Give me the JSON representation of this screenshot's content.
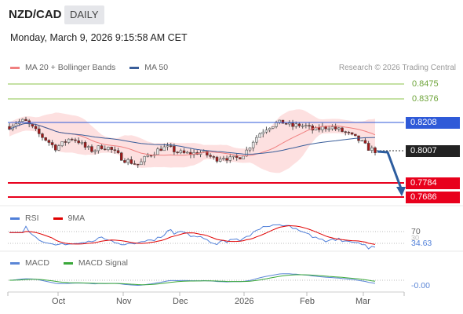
{
  "header": {
    "symbol": "NZD/CAD",
    "timeframe": "DAILY",
    "datetime": "Monday, March 9, 2026 9:15:58 AM CET"
  },
  "legend": {
    "ma20": "MA 20 + Bollinger Bands",
    "ma50": "MA 50",
    "credit": "Research © 2026 Trading Central"
  },
  "colors": {
    "ma20": "#f08080",
    "ma50": "#3a5e9a",
    "resistance": "#8bc34a",
    "pivot": "#2f5ad8",
    "support": "#e8001c",
    "current": "#222222",
    "bollinger_fill": "#fde0e0",
    "up_candle": "#e6e6e6",
    "down_candle": "#a01818",
    "forecast_arrow": "#2d5d9f",
    "rsi": "#4f7fd9",
    "rsi_ma": "#e00000",
    "macd": "#5b86d6",
    "macd_signal": "#3aa83a"
  },
  "levels": {
    "r2": "0.8475",
    "r1": "0.8376",
    "pivot": "0.8208",
    "last": "0.8007",
    "s1": "0.7784",
    "s2": "0.7686"
  },
  "rsi": {
    "legend_rsi": "RSI",
    "legend_ma": "9MA",
    "level_70": "70",
    "level_30": "30",
    "value": "34.63"
  },
  "macd": {
    "legend_macd": "MACD",
    "legend_signal": "MACD Signal",
    "value": "-0.00"
  },
  "x_axis": {
    "months": [
      "Oct",
      "Nov",
      "Dec",
      "2026",
      "Feb",
      "Mar"
    ]
  },
  "chart_data": {
    "type": "candlestick",
    "timeframe": "daily",
    "price_range": [
      0.7686,
      0.8475
    ],
    "last_price": 0.8007,
    "pivot": 0.8208,
    "resistances": [
      0.8376,
      0.8475
    ],
    "supports": [
      0.7784,
      0.7686
    ],
    "forecast": {
      "from": 0.8007,
      "to": 0.7686
    },
    "close_path": [
      0.818,
      0.821,
      0.822,
      0.817,
      0.812,
      0.808,
      0.803,
      0.806,
      0.81,
      0.808,
      0.803,
      0.801,
      0.804,
      0.803,
      0.799,
      0.795,
      0.793,
      0.791,
      0.797,
      0.8,
      0.803,
      0.803,
      0.8,
      0.799,
      0.799,
      0.8,
      0.798,
      0.795,
      0.797,
      0.795,
      0.796,
      0.8,
      0.808,
      0.814,
      0.818,
      0.82,
      0.821,
      0.818,
      0.819,
      0.818,
      0.815,
      0.817,
      0.818,
      0.816,
      0.814,
      0.811,
      0.808,
      0.803,
      0.801
    ],
    "rsi_levels": [
      30,
      70
    ],
    "rsi_last": 34.63,
    "macd_last": -0.0
  }
}
